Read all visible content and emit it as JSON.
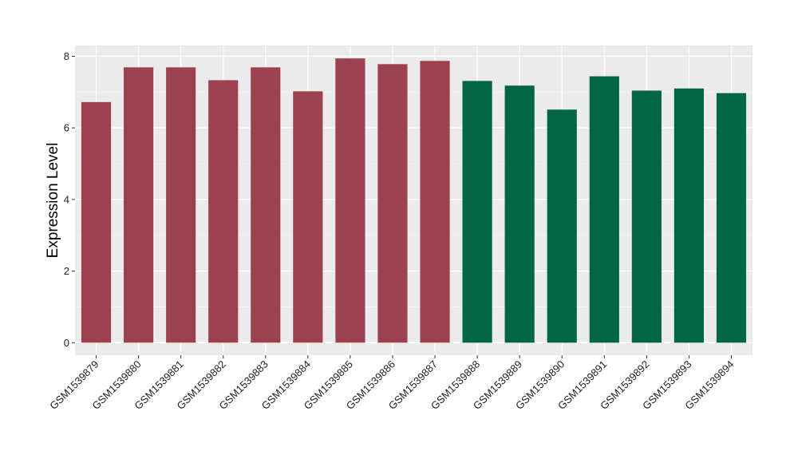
{
  "chart_data": {
    "type": "bar",
    "title": "",
    "xlabel": "",
    "ylabel": "Expression Level",
    "ylim": [
      -0.35,
      8.3
    ],
    "y_ticks": [
      0,
      2,
      4,
      6,
      8
    ],
    "grid": true,
    "background": "#EBEBEB",
    "categories": [
      "GSM1539879",
      "GSM1539880",
      "GSM1539881",
      "GSM1539882",
      "GSM1539883",
      "GSM1539884",
      "GSM1539885",
      "GSM1539886",
      "GSM1539887",
      "GSM1539888",
      "GSM1539889",
      "GSM1539890",
      "GSM1539891",
      "GSM1539892",
      "GSM1539893",
      "GSM1539894"
    ],
    "values": [
      6.72,
      7.69,
      7.69,
      7.33,
      7.69,
      7.02,
      7.94,
      7.78,
      7.87,
      7.31,
      7.18,
      6.51,
      7.44,
      7.04,
      7.1,
      6.97
    ],
    "bar_colors": [
      "#9B4150",
      "#9B4150",
      "#9B4150",
      "#9B4150",
      "#9B4150",
      "#9B4150",
      "#9B4150",
      "#9B4150",
      "#9B4150",
      "#006644",
      "#006644",
      "#006644",
      "#006644",
      "#006644",
      "#006644",
      "#006644"
    ]
  }
}
